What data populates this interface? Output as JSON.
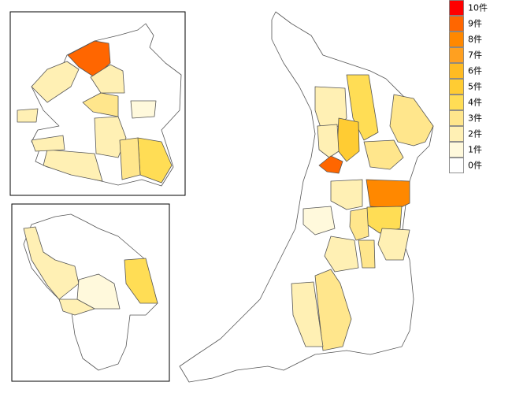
{
  "legend": [
    {
      "label": "10件",
      "color": "#ff0000"
    },
    {
      "label": "9件",
      "color": "#ff6600"
    },
    {
      "label": "8件",
      "color": "#ff8800"
    },
    {
      "label": "7件",
      "color": "#ffa020"
    },
    {
      "label": "6件",
      "color": "#ffbb22"
    },
    {
      "label": "5件",
      "color": "#ffcc33"
    },
    {
      "label": "4件",
      "color": "#ffdd55"
    },
    {
      "label": "3件",
      "color": "#ffe68c"
    },
    {
      "label": "2件",
      "color": "#fff0b4"
    },
    {
      "label": "1件",
      "color": "#fff9dc"
    },
    {
      "label": "0件",
      "color": "#ffffff"
    }
  ]
}
